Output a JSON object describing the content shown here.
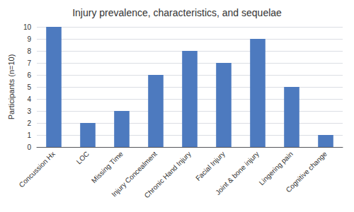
{
  "chart_data": {
    "type": "bar",
    "title": "Injury prevalence, characteristics, and sequelae",
    "categories": [
      "Concussion Hx",
      "LOC",
      "Missing Time",
      "Injury Concealment",
      "Chronic Hand Injury",
      "Facial Injury",
      "Joint & bone injury",
      "Lingering pain",
      "Cognitive change"
    ],
    "values": [
      10,
      2,
      3,
      6,
      8,
      7,
      9,
      5,
      1
    ],
    "color": "#4d7abf",
    "ylabel": "Participants (n=10)",
    "ylim": [
      0,
      10
    ],
    "yticks": [
      0,
      1,
      2,
      3,
      4,
      5,
      6,
      7,
      8,
      9,
      10
    ],
    "grid": true
  }
}
